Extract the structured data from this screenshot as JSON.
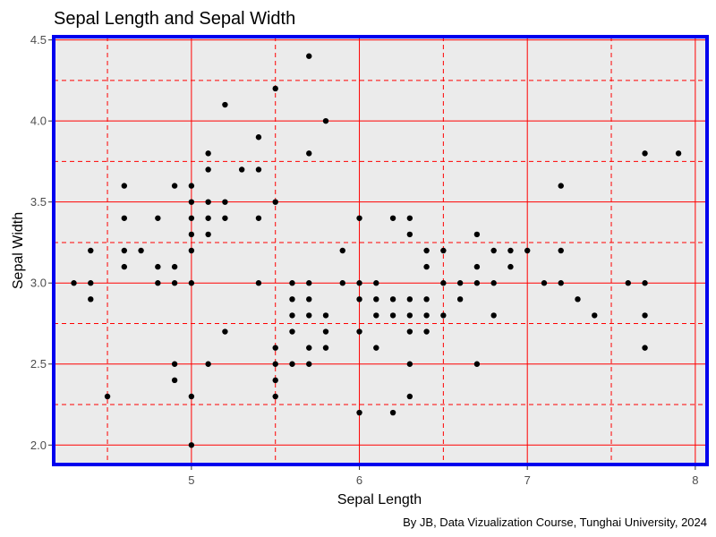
{
  "chart_data": {
    "type": "scatter",
    "title": "Sepal Length and Sepal Width",
    "xlabel": "Sepal Length",
    "ylabel": "Sepal Width",
    "caption": "By JB, Data Vizualization Course, Tunghai University, 2024",
    "xlim": [
      4.18,
      8.07
    ],
    "ylim": [
      1.88,
      4.52
    ],
    "x_ticks": [
      5,
      6,
      7,
      8
    ],
    "x_tick_labels": [
      "5",
      "6",
      "7",
      "8"
    ],
    "y_ticks": [
      2.0,
      2.5,
      3.0,
      3.5,
      4.0,
      4.5
    ],
    "y_tick_labels": [
      "2.0",
      "2.5",
      "3.0",
      "3.5",
      "4.0",
      "4.5"
    ],
    "x_minor_ticks": [
      4.5,
      5.5,
      6.5,
      7.5
    ],
    "y_minor_ticks": [
      2.25,
      2.75,
      3.25,
      3.75,
      4.25
    ],
    "grid": true,
    "colors": {
      "panel_background": "#ebebeb",
      "panel_border": "#0000ee",
      "grid": "#ff0000",
      "points": "#000000"
    },
    "points": [
      [
        4.3,
        3.0
      ],
      [
        4.4,
        3.2
      ],
      [
        4.4,
        3.0
      ],
      [
        4.4,
        2.9
      ],
      [
        4.5,
        2.3
      ],
      [
        4.6,
        3.6
      ],
      [
        4.6,
        3.4
      ],
      [
        4.6,
        3.2
      ],
      [
        4.6,
        3.1
      ],
      [
        4.7,
        3.2
      ],
      [
        4.8,
        3.4
      ],
      [
        4.8,
        3.1
      ],
      [
        4.8,
        3.0
      ],
      [
        4.9,
        3.6
      ],
      [
        4.9,
        3.1
      ],
      [
        4.9,
        3.0
      ],
      [
        4.9,
        2.5
      ],
      [
        4.9,
        2.4
      ],
      [
        5.0,
        3.6
      ],
      [
        5.0,
        3.5
      ],
      [
        5.0,
        3.4
      ],
      [
        5.0,
        3.3
      ],
      [
        5.0,
        3.2
      ],
      [
        5.0,
        3.0
      ],
      [
        5.0,
        2.3
      ],
      [
        5.0,
        2.0
      ],
      [
        5.1,
        3.8
      ],
      [
        5.1,
        3.7
      ],
      [
        5.1,
        3.5
      ],
      [
        5.1,
        3.4
      ],
      [
        5.1,
        3.3
      ],
      [
        5.1,
        2.5
      ],
      [
        5.2,
        4.1
      ],
      [
        5.2,
        3.5
      ],
      [
        5.2,
        3.4
      ],
      [
        5.2,
        2.7
      ],
      [
        5.3,
        3.7
      ],
      [
        5.4,
        3.9
      ],
      [
        5.4,
        3.7
      ],
      [
        5.4,
        3.4
      ],
      [
        5.4,
        3.0
      ],
      [
        5.5,
        4.2
      ],
      [
        5.5,
        3.5
      ],
      [
        5.5,
        2.6
      ],
      [
        5.5,
        2.5
      ],
      [
        5.5,
        2.4
      ],
      [
        5.5,
        2.3
      ],
      [
        5.6,
        3.0
      ],
      [
        5.6,
        2.9
      ],
      [
        5.6,
        2.8
      ],
      [
        5.6,
        2.7
      ],
      [
        5.6,
        2.5
      ],
      [
        5.7,
        4.4
      ],
      [
        5.7,
        3.8
      ],
      [
        5.7,
        3.0
      ],
      [
        5.7,
        2.9
      ],
      [
        5.7,
        2.8
      ],
      [
        5.7,
        2.6
      ],
      [
        5.7,
        2.5
      ],
      [
        5.8,
        4.0
      ],
      [
        5.8,
        2.8
      ],
      [
        5.8,
        2.7
      ],
      [
        5.8,
        2.6
      ],
      [
        5.9,
        3.2
      ],
      [
        5.9,
        3.0
      ],
      [
        6.0,
        3.4
      ],
      [
        6.0,
        3.0
      ],
      [
        6.0,
        2.9
      ],
      [
        6.0,
        2.7
      ],
      [
        6.0,
        2.2
      ],
      [
        6.1,
        3.0
      ],
      [
        6.1,
        2.9
      ],
      [
        6.1,
        2.8
      ],
      [
        6.1,
        2.6
      ],
      [
        6.2,
        3.4
      ],
      [
        6.2,
        2.9
      ],
      [
        6.2,
        2.8
      ],
      [
        6.2,
        2.2
      ],
      [
        6.3,
        3.4
      ],
      [
        6.3,
        3.3
      ],
      [
        6.3,
        2.9
      ],
      [
        6.3,
        2.8
      ],
      [
        6.3,
        2.7
      ],
      [
        6.3,
        2.5
      ],
      [
        6.3,
        2.3
      ],
      [
        6.4,
        3.2
      ],
      [
        6.4,
        3.1
      ],
      [
        6.4,
        2.9
      ],
      [
        6.4,
        2.8
      ],
      [
        6.4,
        2.7
      ],
      [
        6.5,
        3.2
      ],
      [
        6.5,
        3.0
      ],
      [
        6.5,
        2.8
      ],
      [
        6.6,
        3.0
      ],
      [
        6.6,
        2.9
      ],
      [
        6.7,
        3.3
      ],
      [
        6.7,
        3.1
      ],
      [
        6.7,
        3.0
      ],
      [
        6.7,
        2.5
      ],
      [
        6.8,
        3.2
      ],
      [
        6.8,
        3.0
      ],
      [
        6.8,
        2.8
      ],
      [
        6.9,
        3.2
      ],
      [
        6.9,
        3.1
      ],
      [
        7.0,
        3.2
      ],
      [
        7.1,
        3.0
      ],
      [
        7.2,
        3.6
      ],
      [
        7.2,
        3.2
      ],
      [
        7.2,
        3.0
      ],
      [
        7.3,
        2.9
      ],
      [
        7.4,
        2.8
      ],
      [
        7.6,
        3.0
      ],
      [
        7.7,
        3.8
      ],
      [
        7.7,
        3.0
      ],
      [
        7.7,
        2.8
      ],
      [
        7.7,
        2.6
      ],
      [
        7.9,
        3.8
      ]
    ]
  }
}
